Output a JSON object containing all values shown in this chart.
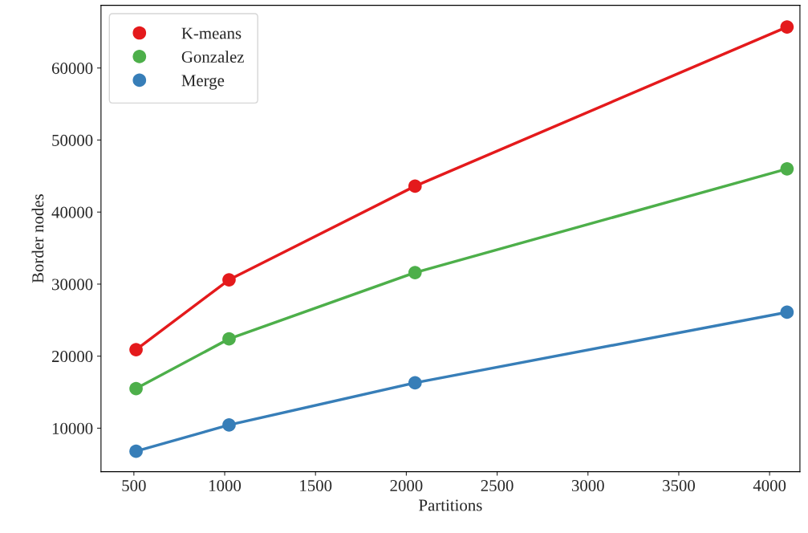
{
  "chart_data": {
    "type": "line",
    "xlabel": "Partitions",
    "ylabel": "Border nodes",
    "x": [
      512,
      1024,
      2048,
      4096
    ],
    "series": [
      {
        "name": "K-means",
        "color": "#e41a1c",
        "values": [
          20900,
          30600,
          43600,
          65700
        ]
      },
      {
        "name": "Gonzalez",
        "color": "#4daf4a",
        "values": [
          15500,
          22400,
          31600,
          46000
        ]
      },
      {
        "name": "Merge",
        "color": "#377eb8",
        "values": [
          6800,
          10450,
          16300,
          26100
        ]
      }
    ],
    "xlim": [
      319,
      4167
    ],
    "xticks": [
      500,
      1000,
      1500,
      2000,
      2500,
      3000,
      3500,
      4000
    ],
    "ylim": [
      3960,
      68700
    ],
    "yticks": [
      10000,
      20000,
      30000,
      40000,
      50000,
      60000
    ],
    "marker": "circle",
    "line_style": "solid",
    "grid": false,
    "legend": "top left"
  }
}
